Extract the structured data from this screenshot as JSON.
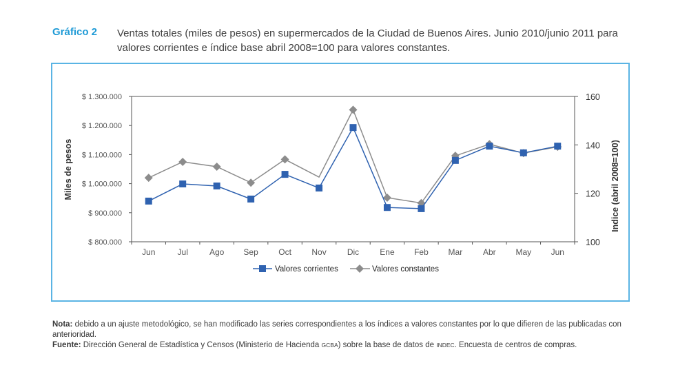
{
  "header": {
    "label": "Gráfico 2",
    "title": "Ventas totales (miles de pesos) en supermercados de la Ciudad de Buenos Aires. Junio 2010/junio 2011 para valores corrientes e índice base abril 2008=100 para valores constantes."
  },
  "chart_data": {
    "type": "line",
    "categories": [
      "Jun",
      "Jul",
      "Ago",
      "Sep",
      "Oct",
      "Nov",
      "Dic",
      "Ene",
      "Feb",
      "Mar",
      "Abr",
      "May",
      "Jun"
    ],
    "ylabel_left": "Miles de pesos",
    "ylabel_right": "Indice (abril 2008=100)",
    "ylim_left": [
      800000,
      1300000
    ],
    "ylim_right": [
      100,
      160
    ],
    "left_ticks": [
      {
        "value": 800000,
        "label": "$ 800.000"
      },
      {
        "value": 900000,
        "label": "$ 900.000"
      },
      {
        "value": 1000000,
        "label": "$ 1.000.000"
      },
      {
        "value": 1100000,
        "label": "$ 1.100.000"
      },
      {
        "value": 1200000,
        "label": "$ 1.200.000"
      },
      {
        "value": 1300000,
        "label": "$ 1.300.000"
      }
    ],
    "right_ticks": [
      {
        "value": 100,
        "label": "100"
      },
      {
        "value": 120,
        "label": "120"
      },
      {
        "value": 140,
        "label": "140"
      },
      {
        "value": 160,
        "label": "160"
      }
    ],
    "series": [
      {
        "name": "Valores corrientes",
        "axis": "left",
        "marker": "square",
        "color": "#2f62b0",
        "values": [
          940000,
          999000,
          992000,
          947000,
          1032000,
          985000,
          1193000,
          918000,
          914000,
          1080000,
          1129000,
          1106000,
          1129000
        ]
      },
      {
        "name": "Valores constantes",
        "axis": "right",
        "marker": "diamond",
        "color": "#8c8c8c",
        "values": [
          126.4,
          133.0,
          131.0,
          124.4,
          134.0,
          126.7,
          154.5,
          118.2,
          116.0,
          135.5,
          140.3,
          136.6,
          139.2
        ],
        "hidden_markers": [
          5
        ]
      }
    ],
    "legend": "bottom",
    "grid": false
  },
  "notes": {
    "nota_label": "Nota:",
    "nota_text": " debido a un ajuste metodológico, se han modificado las series correspondientes a los índices a valores constantes por lo que difieren de las publicadas con anterioridad.",
    "fuente_label": "Fuente:",
    "fuente_text_1": " Dirección General de Estadística y Censos (Ministerio de Hacienda ",
    "fuente_sc_1": "gcba",
    "fuente_text_2": ") sobre la base de datos de ",
    "fuente_sc_2": "indec",
    "fuente_text_3": ". Encuesta de centros de compras."
  }
}
